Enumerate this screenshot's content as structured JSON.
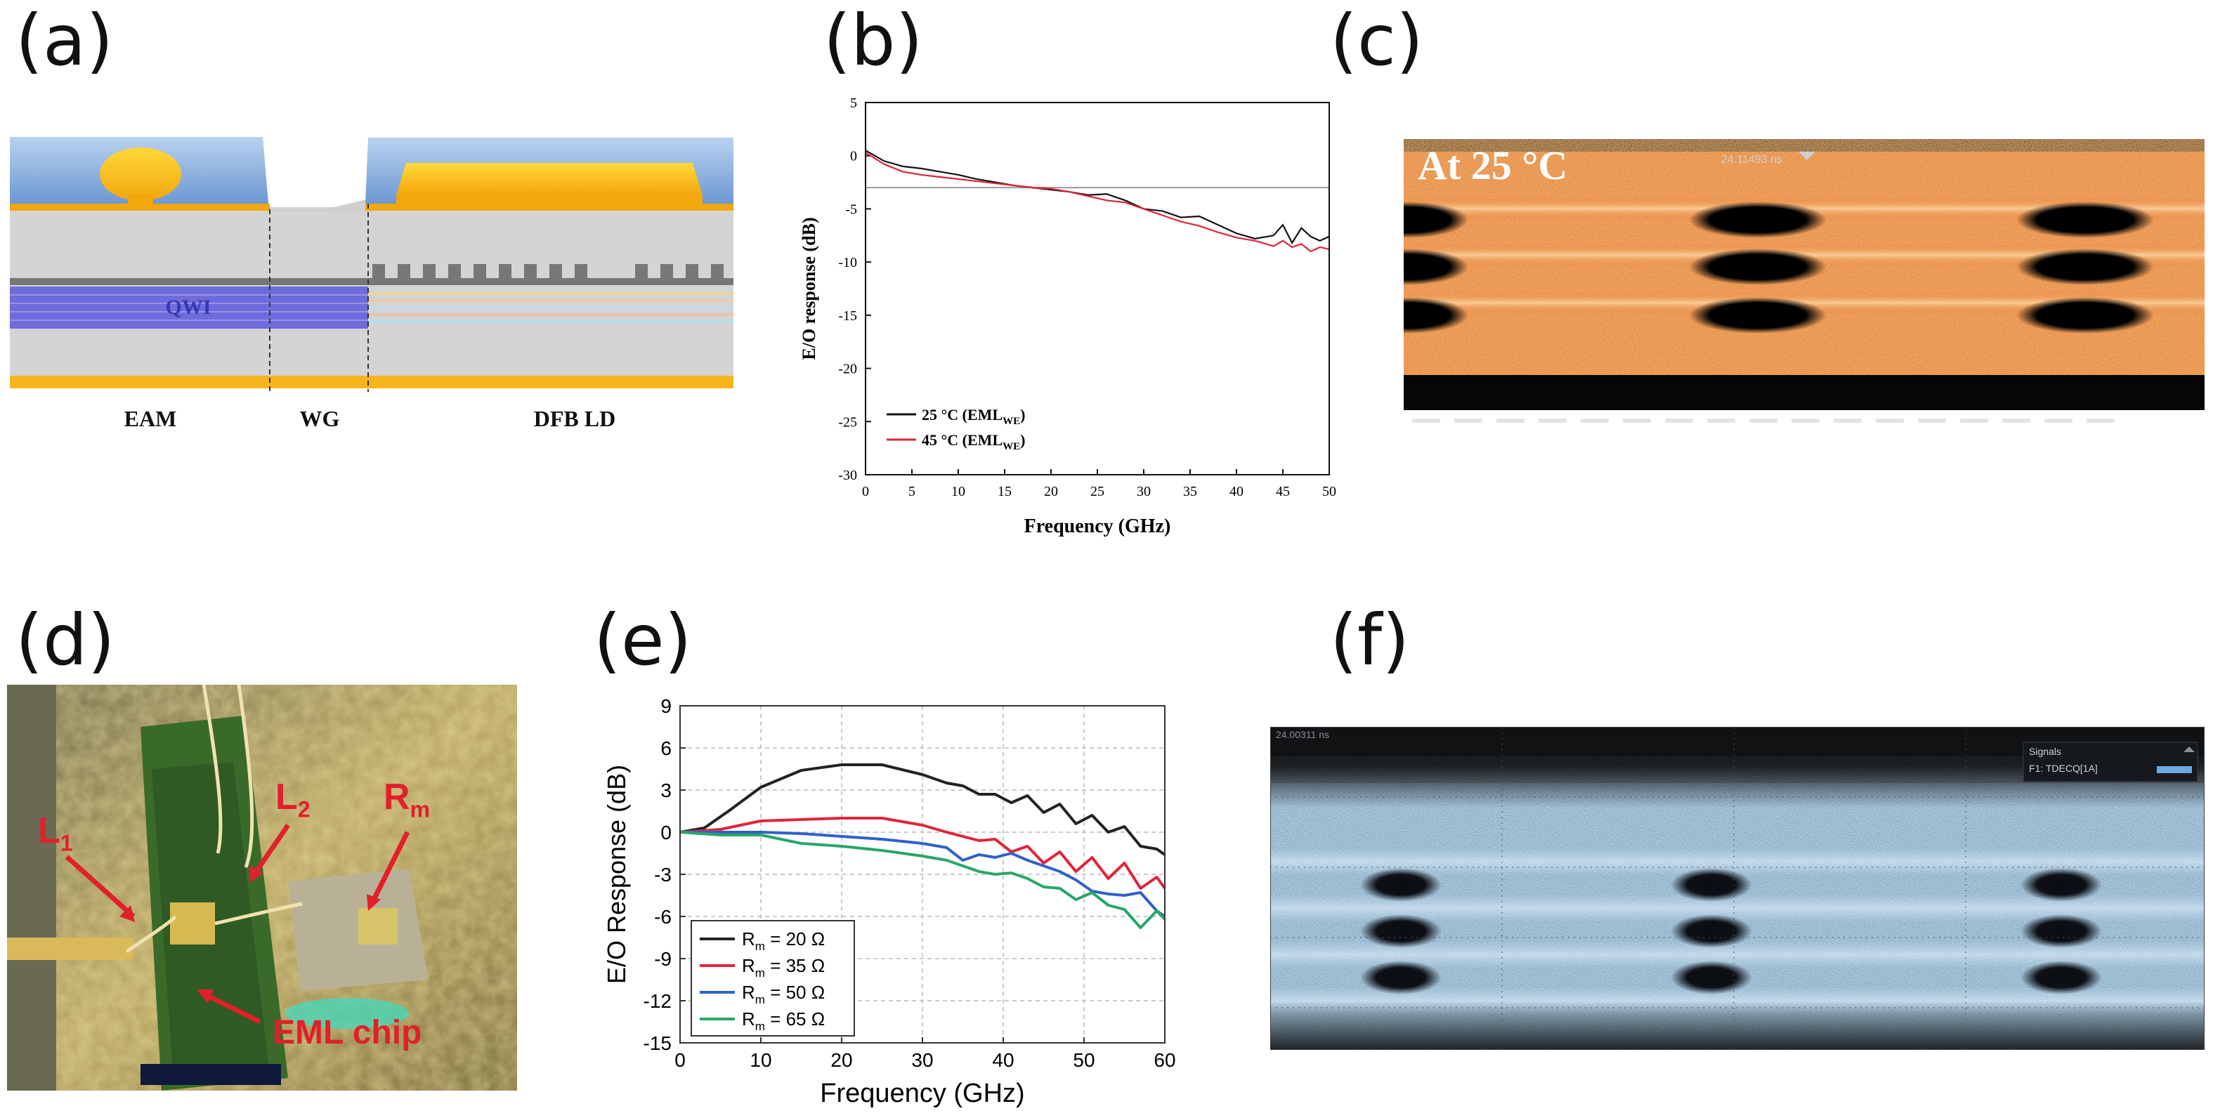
{
  "panels": {
    "a": {
      "label": "(a)",
      "qwi_label": "QWI",
      "section_labels": [
        "EAM",
        "WG",
        "DFB LD"
      ],
      "colors": {
        "blue_top": "#7aa5d8",
        "gold": "#f5b718",
        "gray": "#d2d2d2",
        "qwi": "#6b6bd8",
        "dark": "#777777"
      }
    },
    "b": {
      "label": "(b)",
      "chart_data": {
        "type": "line",
        "xlabel": "Frequency (GHz)",
        "ylabel": "E/O response (dB)",
        "xlim": [
          0,
          50
        ],
        "ylim": [
          -30,
          5
        ],
        "xticks": [
          0,
          5,
          10,
          15,
          20,
          25,
          30,
          35,
          40,
          45,
          50
        ],
        "yticks": [
          5,
          0,
          -5,
          -10,
          -15,
          -20,
          -25,
          -30
        ],
        "reference_line_db": -3,
        "legend_position": "lower-left",
        "series": [
          {
            "name": "25 °C (EML",
            "sub": "WE",
            "suffix": ")",
            "color": "#111111",
            "x": [
              0,
              2,
              4,
              6,
              8,
              10,
              12,
              14,
              16,
              18,
              20,
              22,
              24,
              26,
              28,
              30,
              32,
              34,
              36,
              38,
              40,
              42,
              44,
              45,
              46,
              47,
              48,
              49,
              50
            ],
            "y": [
              0.5,
              -0.5,
              -1,
              -1.2,
              -1.5,
              -1.8,
              -2.2,
              -2.5,
              -2.8,
              -3,
              -3.2,
              -3.4,
              -3.7,
              -3.6,
              -4.2,
              -5,
              -5.2,
              -5.8,
              -5.7,
              -6.5,
              -7.3,
              -7.8,
              -7.5,
              -6.5,
              -8.2,
              -6.8,
              -7.6,
              -8,
              -7.6
            ]
          },
          {
            "name": "45 °C (EML",
            "sub": "WE",
            "suffix": ")",
            "color": "#e0243a",
            "x": [
              0,
              2,
              4,
              6,
              8,
              10,
              12,
              14,
              16,
              18,
              20,
              22,
              24,
              26,
              28,
              30,
              32,
              34,
              36,
              38,
              40,
              42,
              44,
              45,
              46,
              47,
              48,
              49,
              50
            ],
            "y": [
              0.3,
              -0.8,
              -1.5,
              -1.8,
              -2,
              -2.2,
              -2.4,
              -2.6,
              -2.8,
              -3,
              -3.1,
              -3.4,
              -3.8,
              -4.2,
              -4.4,
              -5,
              -5.6,
              -6.2,
              -6.6,
              -7.2,
              -7.7,
              -8,
              -8.5,
              -8,
              -8.6,
              -8.3,
              -9,
              -8.6,
              -8.8
            ]
          }
        ]
      }
    },
    "c": {
      "label": "(c)",
      "title": "At 25 °C",
      "scope_text": "24.11493 ns",
      "color": "#e86a1f"
    },
    "d": {
      "label": "(d)",
      "annotations": [
        "L",
        "1",
        "L",
        "2",
        "R",
        "m",
        "EML chip"
      ],
      "color": "#e0202a"
    },
    "e": {
      "label": "(e)",
      "chart_data": {
        "type": "line",
        "xlabel": "Frequency (GHz)",
        "ylabel": "E/O Response (dB)",
        "xlim": [
          0,
          60
        ],
        "ylim": [
          -15,
          9
        ],
        "xticks": [
          0,
          10,
          20,
          30,
          40,
          50,
          60
        ],
        "yticks": [
          9,
          6,
          3,
          0,
          -3,
          -6,
          -9,
          -12,
          -15
        ],
        "grid": true,
        "legend_position": "lower-left",
        "series": [
          {
            "name": "R",
            "sub": "m",
            "suffix": " = 20 Ω",
            "color": "#222222",
            "x": [
              0,
              3,
              6,
              10,
              15,
              20,
              25,
              30,
              33,
              35,
              37,
              39,
              41,
              43,
              45,
              47,
              49,
              51,
              53,
              55,
              57,
              59,
              60
            ],
            "y": [
              0,
              0.3,
              1.5,
              3.2,
              4.4,
              4.8,
              4.8,
              4.1,
              3.5,
              3.3,
              2.7,
              2.7,
              2.1,
              2.6,
              1.4,
              2.0,
              0.6,
              1.2,
              0,
              0.4,
              -1.0,
              -1.2,
              -1.6
            ]
          },
          {
            "name": "R",
            "sub": "m",
            "suffix": " = 35 Ω",
            "color": "#e0243a",
            "x": [
              0,
              5,
              10,
              15,
              20,
              25,
              30,
              33,
              35,
              37,
              39,
              41,
              43,
              45,
              47,
              49,
              51,
              53,
              55,
              57,
              59,
              60
            ],
            "y": [
              0,
              0.2,
              0.8,
              0.9,
              1.0,
              1.0,
              0.5,
              0,
              -0.3,
              -0.6,
              -0.5,
              -1.4,
              -1.0,
              -2.2,
              -1.4,
              -2.8,
              -1.8,
              -3.3,
              -2.2,
              -4.0,
              -3.2,
              -4.0
            ]
          },
          {
            "name": "R",
            "sub": "m",
            "suffix": " = 50 Ω",
            "color": "#2f62c8",
            "x": [
              0,
              5,
              10,
              15,
              20,
              25,
              30,
              33,
              35,
              37,
              39,
              41,
              43,
              45,
              47,
              49,
              51,
              53,
              55,
              57,
              59,
              60
            ],
            "y": [
              0,
              0,
              0,
              -0.1,
              -0.3,
              -0.5,
              -0.8,
              -1.1,
              -2.0,
              -1.6,
              -1.8,
              -1.5,
              -2.0,
              -2.4,
              -2.8,
              -3.4,
              -4.2,
              -4.4,
              -4.5,
              -4.3,
              -5.6,
              -6.0
            ]
          },
          {
            "name": "R",
            "sub": "m",
            "suffix": " = 65 Ω",
            "color": "#27a768",
            "x": [
              0,
              5,
              10,
              15,
              20,
              25,
              30,
              33,
              35,
              37,
              39,
              41,
              43,
              45,
              47,
              49,
              51,
              53,
              55,
              57,
              59,
              60
            ],
            "y": [
              0,
              -0.2,
              -0.2,
              -0.8,
              -1.0,
              -1.3,
              -1.7,
              -2.0,
              -2.4,
              -2.8,
              -3.0,
              -2.9,
              -3.3,
              -3.9,
              -4.0,
              -4.8,
              -4.3,
              -5.2,
              -5.5,
              -6.8,
              -5.6,
              -6.2
            ]
          }
        ]
      }
    },
    "f": {
      "label": "(f)",
      "scope_text": "24.00311 ns",
      "legend_title": "Signals",
      "legend_item": "F1: TDECQ[1A]",
      "color": "#8fc3e6"
    }
  }
}
